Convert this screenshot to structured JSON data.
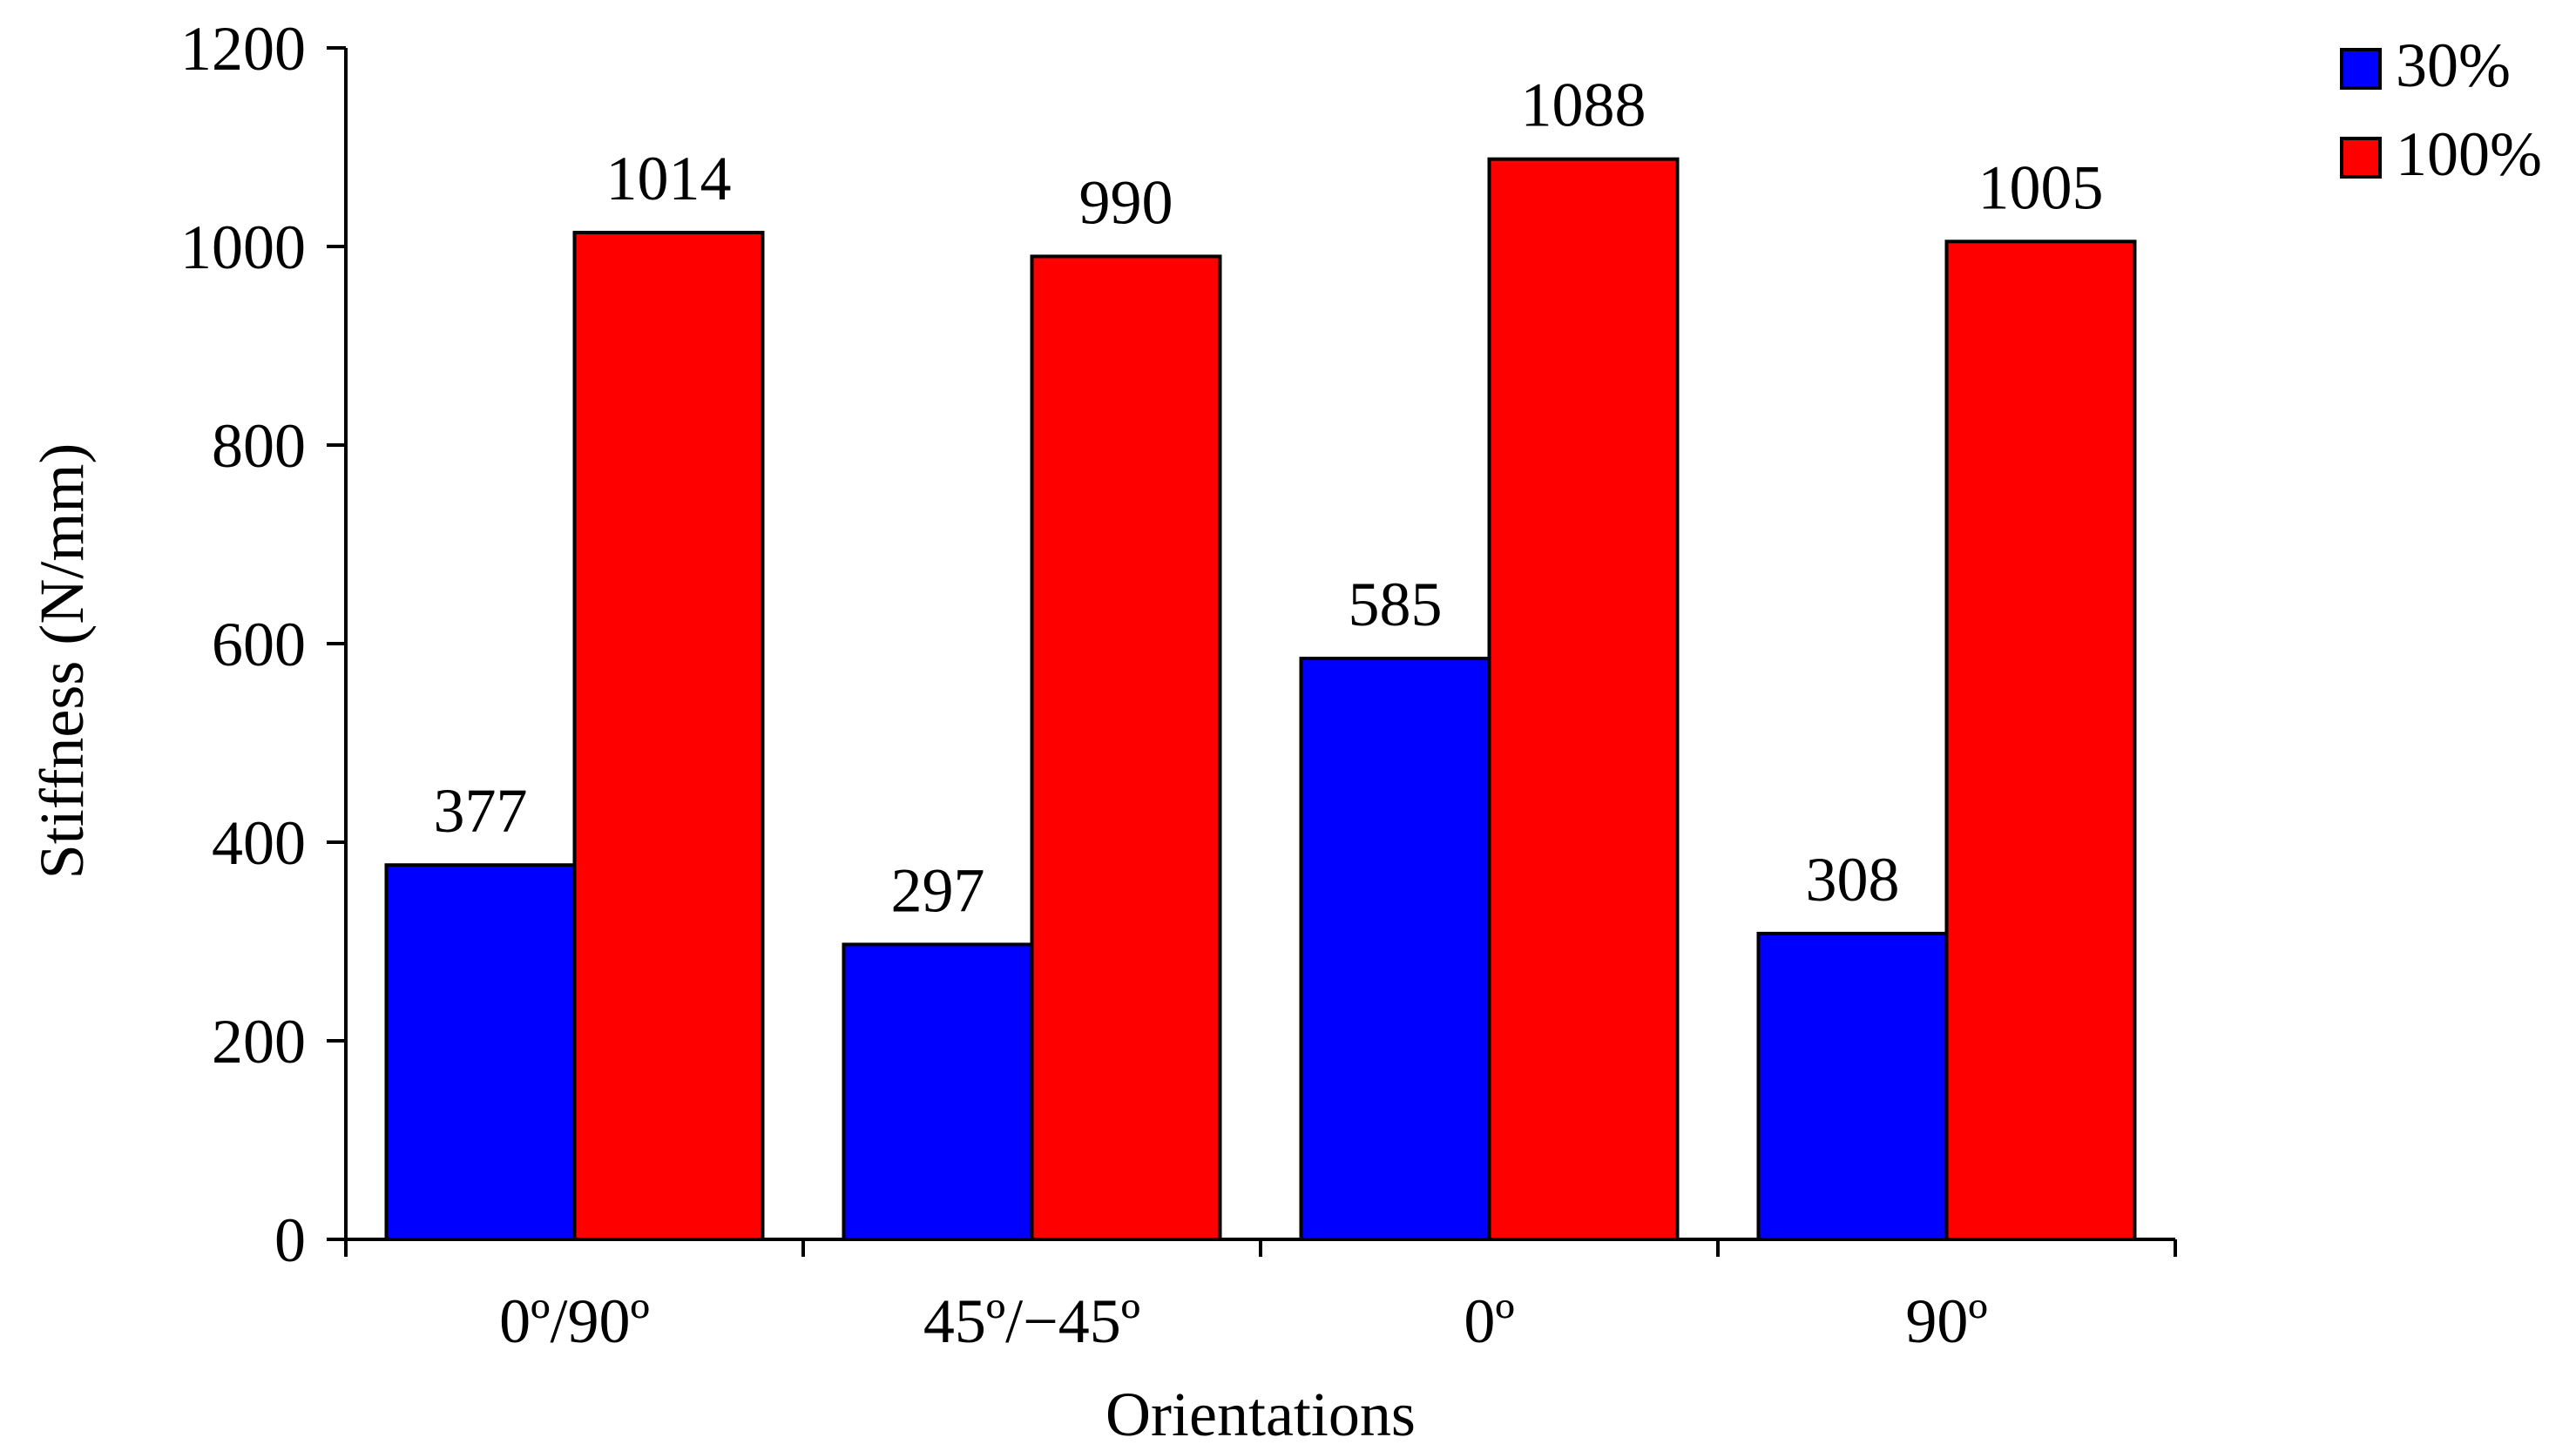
{
  "chart_data": {
    "type": "bar",
    "title": "",
    "xlabel": "Orientations",
    "ylabel": "Stiffness  (N/mm)",
    "categories": [
      "0º/90º",
      "45º/−45º",
      "0º",
      "90º"
    ],
    "series": [
      {
        "name": "30%",
        "values": [
          377,
          297,
          585,
          308
        ],
        "color": "#0000ff"
      },
      {
        "name": "100%",
        "values": [
          1014,
          990,
          1088,
          1005
        ],
        "color": "#ff0000"
      }
    ],
    "ylim": [
      0,
      1200
    ],
    "yticks": [
      0,
      200,
      400,
      600,
      800,
      1000,
      1200
    ],
    "ytick_labels": [
      "0",
      "200",
      "400",
      "600",
      "800",
      "1000",
      "1200"
    ],
    "data_labels": [
      [
        "377",
        "297",
        "585",
        "308"
      ],
      [
        "1014",
        "990",
        "1088",
        "1005"
      ]
    ],
    "grid": false,
    "legend_position": "top-right"
  }
}
